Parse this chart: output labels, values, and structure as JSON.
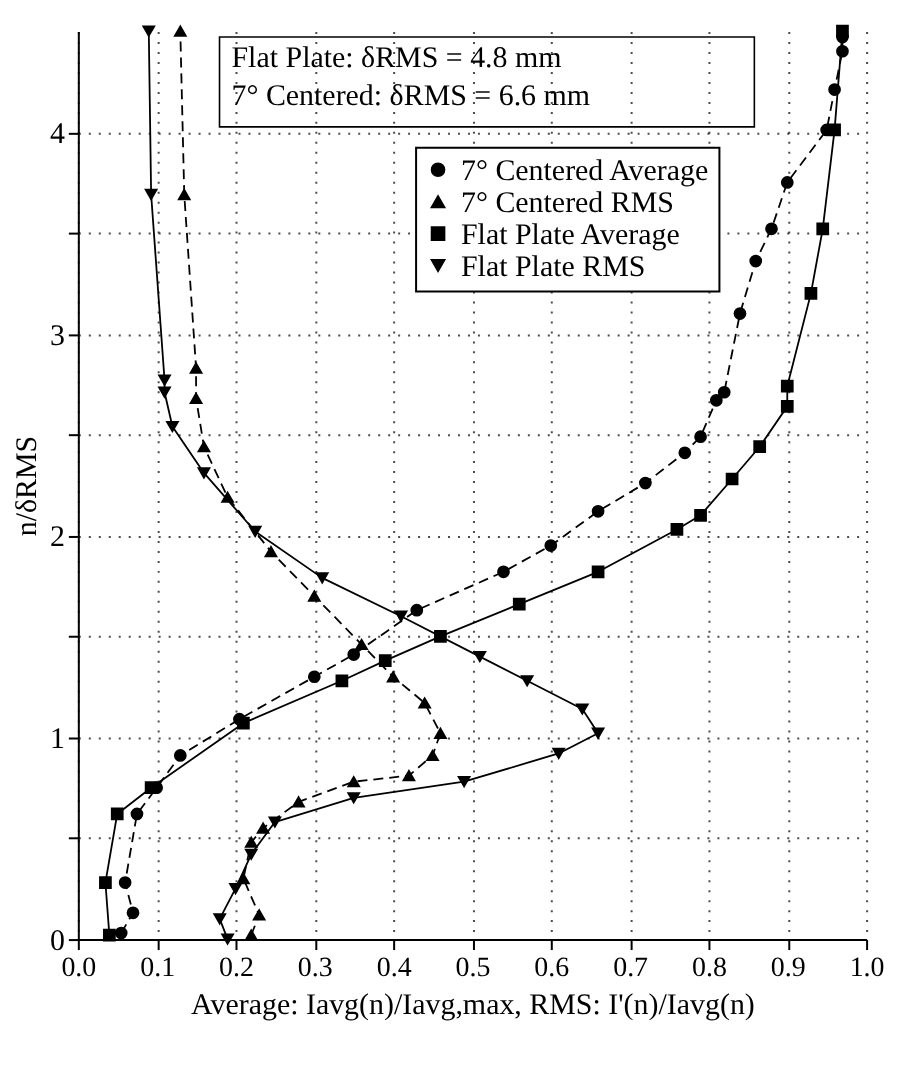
{
  "chart_data": {
    "type": "line",
    "xlabel": "Average: Iavg(n)/Iavg,max, RMS: I'(n)/Iavg(n)",
    "ylabel": "n/δRMS",
    "xlim": [
      0.0,
      1.0
    ],
    "xticks": [
      {
        "value": 0,
        "label": "0.0"
      },
      0.1,
      0.2,
      0.3,
      0.4,
      0.5,
      0.6,
      0.7,
      0.8,
      0.9,
      {
        "value": 1,
        "label": "1.0"
      }
    ],
    "ylim": [
      0,
      4.5
    ],
    "yticks": [
      {
        "value": 0,
        "label": "0"
      },
      {
        "value": 0.5,
        "label": null
      },
      {
        "value": 1,
        "label": "1"
      },
      {
        "value": 1.5,
        "label": null
      },
      {
        "value": 2,
        "label": "2"
      },
      {
        "value": 2.5,
        "label": null
      },
      {
        "value": 3,
        "label": "3"
      },
      {
        "value": 3.5,
        "label": null
      },
      {
        "value": 4,
        "label": "4"
      }
    ],
    "grid": true,
    "legend": "top right",
    "annotations": [
      "Flat Plate: δRMS = 4.8 mm",
      "7° Centered: δRMS = 6.6 mm"
    ],
    "series": [
      {
        "name": "7° Centered Average",
        "color": "#000000",
        "marker": "circle",
        "line_style": "dashed",
        "x": [
          0.055,
          0.07,
          0.06,
          0.075,
          0.1,
          0.13,
          0.205,
          0.3,
          0.35,
          0.43,
          0.54,
          0.6,
          0.66,
          0.72,
          0.77,
          0.79,
          0.81,
          0.82,
          0.84,
          0.86,
          0.88,
          0.9,
          0.95,
          0.96,
          0.97,
          0.97
        ],
        "values": [
          0.03,
          0.13,
          0.28,
          0.62,
          0.75,
          0.91,
          1.09,
          1.3,
          1.41,
          1.63,
          1.82,
          1.95,
          2.12,
          2.26,
          2.41,
          2.49,
          2.67,
          2.71,
          3.1,
          3.36,
          3.52,
          3.75,
          4.01,
          4.21,
          4.4,
          4.47
        ]
      },
      {
        "name": "7° Centered RMS",
        "color": "#000000",
        "marker": "triangle",
        "line_style": "dashed",
        "x": [
          0.22,
          0.23,
          0.21,
          0.22,
          0.235,
          0.28,
          0.35,
          0.42,
          0.45,
          0.46,
          0.44,
          0.4,
          0.36,
          0.3,
          0.245,
          0.19,
          0.16,
          0.15,
          0.15,
          0.135,
          0.13
        ],
        "values": [
          0.02,
          0.12,
          0.3,
          0.48,
          0.55,
          0.68,
          0.78,
          0.81,
          0.91,
          1.02,
          1.17,
          1.3,
          1.46,
          1.7,
          1.92,
          2.19,
          2.44,
          2.68,
          2.83,
          3.69,
          4.5
        ]
      },
      {
        "name": "Flat Plate Average",
        "color": "#000000",
        "marker": "square",
        "line_style": "solid",
        "x": [
          0.04,
          0.035,
          0.05,
          0.093,
          0.21,
          0.335,
          0.39,
          0.46,
          0.56,
          0.66,
          0.76,
          0.79,
          0.83,
          0.865,
          0.9,
          0.9,
          0.93,
          0.945,
          0.96,
          0.97
        ],
        "values": [
          0.02,
          0.28,
          0.62,
          0.75,
          1.07,
          1.28,
          1.38,
          1.5,
          1.66,
          1.82,
          2.03,
          2.1,
          2.28,
          2.44,
          2.64,
          2.74,
          3.2,
          3.52,
          4.01,
          4.5
        ]
      },
      {
        "name": "Flat Plate RMS",
        "color": "#000000",
        "marker": "triangle-down",
        "line_style": "solid",
        "x": [
          0.19,
          0.18,
          0.2,
          0.22,
          0.25,
          0.35,
          0.49,
          0.61,
          0.66,
          0.64,
          0.57,
          0.51,
          0.41,
          0.31,
          0.225,
          0.16,
          0.12,
          0.11,
          0.11,
          0.093,
          0.09
        ],
        "values": [
          0.0,
          0.1,
          0.25,
          0.42,
          0.58,
          0.7,
          0.78,
          0.92,
          1.02,
          1.14,
          1.28,
          1.4,
          1.6,
          1.79,
          2.02,
          2.31,
          2.54,
          2.71,
          2.77,
          3.69,
          4.5
        ]
      }
    ]
  }
}
